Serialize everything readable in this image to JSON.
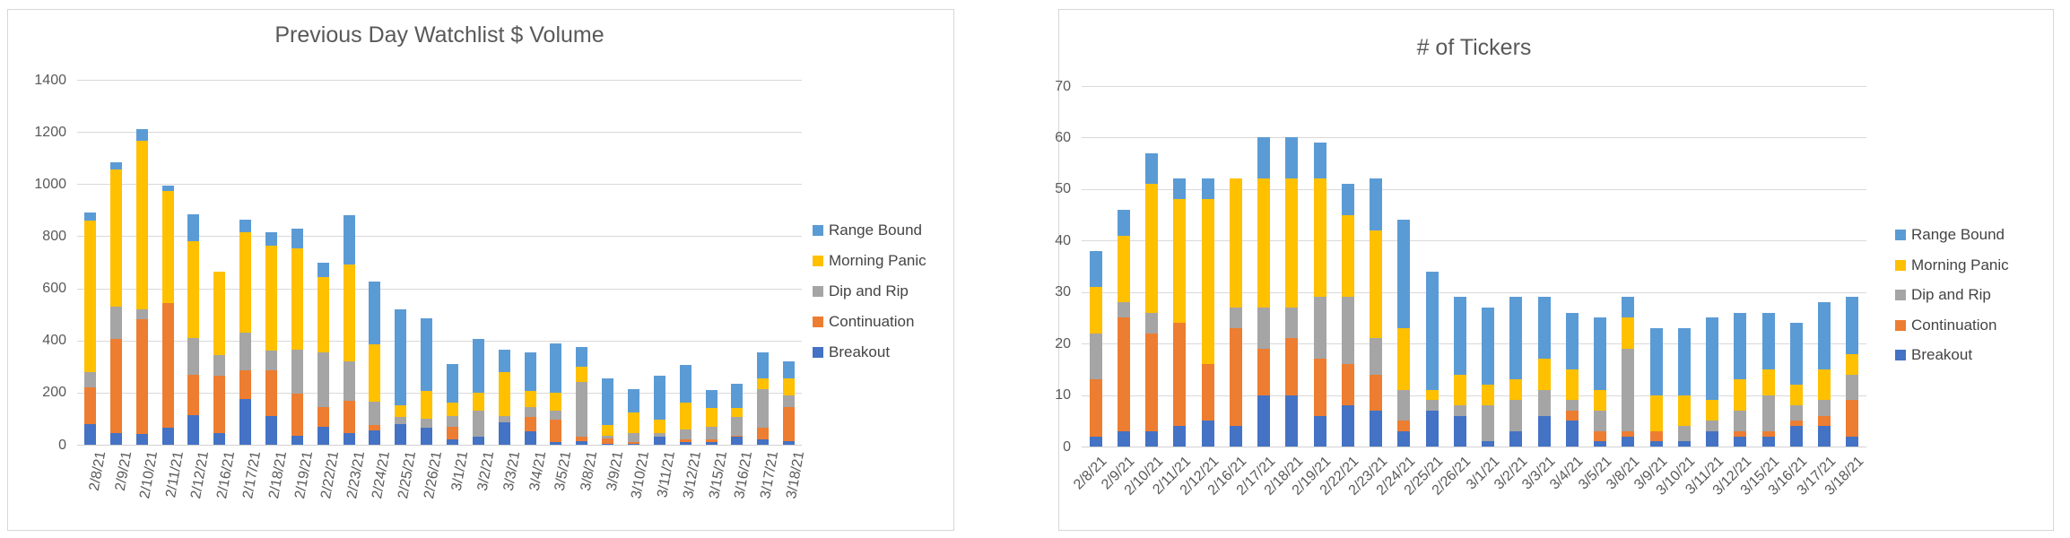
{
  "page": {
    "background": "#ffffff"
  },
  "colors": {
    "range_bound": "#5B9BD5",
    "morning_panic": "#FFC000",
    "dip_and_rip": "#A5A5A5",
    "continuation": "#ED7D31",
    "breakout": "#4472C4",
    "gridline": "#D9D9D9",
    "axis_text": "#595959",
    "title_text": "#595959"
  },
  "chart_data": [
    {
      "type": "bar",
      "stacked": true,
      "title": "Previous Day Watchlist $ Volume",
      "ylim": [
        0,
        1400
      ],
      "ytick": 200,
      "gridlines": true,
      "legend_position": "right",
      "legend_order": [
        "Range Bound",
        "Morning Panic",
        "Dip and Rip",
        "Continuation",
        "Breakout"
      ],
      "categories": [
        "2/8/21",
        "2/9/21",
        "2/10/21",
        "2/11/21",
        "2/12/21",
        "2/16/21",
        "2/17/21",
        "2/18/21",
        "2/19/21",
        "2/22/21",
        "2/23/21",
        "2/24/21",
        "2/25/21",
        "2/26/21",
        "3/1/21",
        "3/2/21",
        "3/3/21",
        "3/4/21",
        "3/5/21",
        "3/8/21",
        "3/9/21",
        "3/10/21",
        "3/11/21",
        "3/12/21",
        "3/15/21",
        "3/16/21",
        "3/17/21",
        "3/18/21"
      ],
      "series": [
        {
          "name": "Breakout",
          "color": "#4472C4",
          "values": [
            80,
            45,
            40,
            65,
            115,
            45,
            175,
            110,
            35,
            70,
            45,
            55,
            80,
            65,
            20,
            30,
            85,
            50,
            10,
            15,
            5,
            5,
            30,
            10,
            10,
            30,
            20,
            15
          ]
        },
        {
          "name": "Continuation",
          "color": "#ED7D31",
          "values": [
            140,
            360,
            440,
            480,
            155,
            220,
            110,
            175,
            160,
            75,
            125,
            20,
            0,
            0,
            50,
            0,
            0,
            55,
            85,
            15,
            20,
            5,
            0,
            10,
            10,
            5,
            45,
            130
          ]
        },
        {
          "name": "Dip and Rip",
          "color": "#A5A5A5",
          "values": [
            60,
            125,
            40,
            0,
            140,
            80,
            145,
            75,
            170,
            210,
            150,
            90,
            25,
            35,
            40,
            100,
            25,
            40,
            35,
            210,
            10,
            35,
            15,
            40,
            50,
            70,
            150,
            45
          ]
        },
        {
          "name": "Morning Panic",
          "color": "#FFC000",
          "values": [
            580,
            525,
            645,
            430,
            370,
            320,
            385,
            405,
            390,
            290,
            370,
            220,
            45,
            105,
            50,
            70,
            170,
            60,
            70,
            60,
            40,
            80,
            50,
            100,
            70,
            35,
            40,
            65
          ]
        },
        {
          "name": "Range Bound",
          "color": "#5B9BD5",
          "values": [
            30,
            30,
            45,
            20,
            105,
            0,
            50,
            50,
            75,
            55,
            190,
            240,
            370,
            280,
            150,
            205,
            85,
            150,
            190,
            75,
            180,
            90,
            170,
            145,
            70,
            95,
            100,
            65
          ]
        }
      ]
    },
    {
      "type": "bar",
      "stacked": true,
      "title": "# of Tickers",
      "ylim": [
        0,
        70
      ],
      "ytick": 10,
      "gridlines": true,
      "legend_position": "right",
      "legend_order": [
        "Range Bound",
        "Morning Panic",
        "Dip and Rip",
        "Continuation",
        "Breakout"
      ],
      "categories": [
        "2/8/21",
        "2/9/21",
        "2/10/21",
        "2/11/21",
        "2/12/21",
        "2/16/21",
        "2/17/21",
        "2/18/21",
        "2/19/21",
        "2/22/21",
        "2/23/21",
        "2/24/21",
        "2/25/21",
        "2/26/21",
        "3/1/21",
        "3/2/21",
        "3/3/21",
        "3/4/21",
        "3/5/21",
        "3/8/21",
        "3/9/21",
        "3/10/21",
        "3/11/21",
        "3/12/21",
        "3/15/21",
        "3/16/21",
        "3/17/21",
        "3/18/21"
      ],
      "series": [
        {
          "name": "Breakout",
          "color": "#4472C4",
          "values": [
            2,
            3,
            3,
            4,
            5,
            4,
            10,
            10,
            6,
            8,
            7,
            3,
            7,
            6,
            1,
            3,
            6,
            5,
            1,
            2,
            1,
            1,
            3,
            2,
            2,
            4,
            4,
            2
          ]
        },
        {
          "name": "Continuation",
          "color": "#ED7D31",
          "values": [
            11,
            22,
            19,
            20,
            11,
            19,
            9,
            11,
            11,
            8,
            7,
            2,
            0,
            0,
            0,
            0,
            0,
            2,
            2,
            1,
            2,
            0,
            0,
            1,
            1,
            1,
            2,
            7
          ]
        },
        {
          "name": "Dip and Rip",
          "color": "#A5A5A5",
          "values": [
            9,
            3,
            4,
            0,
            0,
            4,
            8,
            6,
            12,
            13,
            7,
            6,
            2,
            2,
            7,
            6,
            5,
            2,
            4,
            16,
            0,
            3,
            2,
            4,
            7,
            3,
            3,
            5
          ]
        },
        {
          "name": "Morning Panic",
          "color": "#FFC000",
          "values": [
            9,
            13,
            25,
            24,
            32,
            25,
            25,
            25,
            23,
            16,
            21,
            12,
            2,
            6,
            4,
            4,
            6,
            6,
            4,
            6,
            7,
            6,
            4,
            6,
            5,
            4,
            6,
            4
          ]
        },
        {
          "name": "Range Bound",
          "color": "#5B9BD5",
          "values": [
            7,
            5,
            6,
            4,
            4,
            0,
            8,
            8,
            7,
            6,
            10,
            21,
            23,
            15,
            15,
            16,
            12,
            11,
            14,
            4,
            13,
            13,
            16,
            13,
            11,
            12,
            13,
            11
          ]
        }
      ]
    }
  ]
}
